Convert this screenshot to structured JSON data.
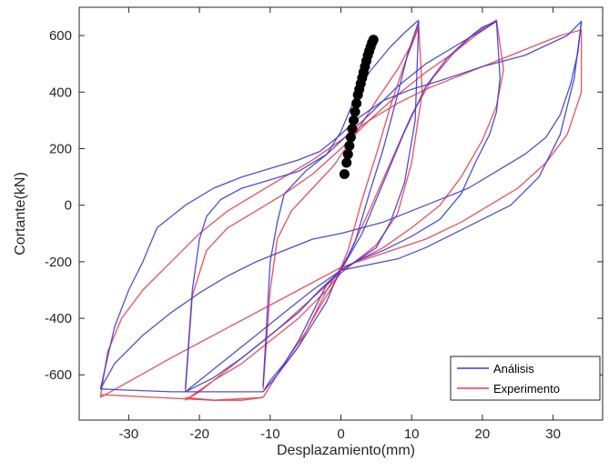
{
  "chart_data": {
    "type": "line",
    "xlabel": "Desplazamiento(mm)",
    "ylabel": "Cortante(kN)",
    "xlim": [
      -37,
      37
    ],
    "ylim": [
      -760,
      700
    ],
    "x_ticks": [
      -30,
      -20,
      -10,
      0,
      10,
      20,
      30
    ],
    "x_tick_labels": [
      "-30",
      "-20",
      "-10",
      "0",
      "10",
      "20",
      "30"
    ],
    "y_ticks": [
      -600,
      -400,
      -200,
      0,
      200,
      400,
      600
    ],
    "y_tick_labels": [
      "-600",
      "-400",
      "-200",
      "0",
      "200",
      "400",
      "600"
    ],
    "grid": false,
    "legend_position": "bottom-right",
    "colors": {
      "analisis": "#3a3ae0",
      "experimento": "#ee3a4a",
      "marker": "#000000",
      "axis": "#262626"
    },
    "series": [
      {
        "name": "Análisis",
        "color": "#3a3ae0",
        "loops": [
          [
            [
              -11,
              -660
            ],
            [
              -9,
              -600
            ],
            [
              -6,
              -500
            ],
            [
              -4,
              -420
            ],
            [
              -2,
              -340
            ],
            [
              -1,
              -280
            ],
            [
              0,
              -230
            ],
            [
              2,
              -130
            ],
            [
              4,
              40
            ],
            [
              6,
              200
            ],
            [
              8,
              390
            ],
            [
              9.5,
              540
            ],
            [
              11,
              650
            ],
            [
              10.5,
              300
            ],
            [
              9,
              80
            ],
            [
              7,
              -60
            ],
            [
              5,
              -150
            ],
            [
              2,
              -200
            ],
            [
              0,
              -230
            ],
            [
              -2,
              -280
            ],
            [
              -4,
              -380
            ],
            [
              -6,
              -480
            ],
            [
              -8,
              -560
            ],
            [
              -10,
              -620
            ],
            [
              -11,
              -660
            ]
          ],
          [
            [
              -11,
              -640
            ],
            [
              -10,
              -200
            ],
            [
              -9,
              -60
            ],
            [
              -8,
              40
            ],
            [
              -5,
              120
            ],
            [
              -2,
              180
            ],
            [
              0,
              260
            ],
            [
              2,
              380
            ],
            [
              4,
              470
            ],
            [
              7,
              560
            ],
            [
              9,
              610
            ],
            [
              11,
              655
            ]
          ],
          [
            [
              -22,
              -660
            ],
            [
              -20,
              -620
            ],
            [
              -16,
              -540
            ],
            [
              -12,
              -460
            ],
            [
              -8,
              -380
            ],
            [
              -4,
              -300
            ],
            [
              0,
              -230
            ],
            [
              3,
              -100
            ],
            [
              6,
              80
            ],
            [
              9,
              260
            ],
            [
              12,
              420
            ],
            [
              15,
              520
            ],
            [
              18,
              590
            ],
            [
              20,
              630
            ],
            [
              22,
              650
            ],
            [
              22.5,
              450
            ],
            [
              22,
              330
            ],
            [
              21,
              250
            ],
            [
              19,
              150
            ],
            [
              17,
              40
            ],
            [
              14,
              -50
            ],
            [
              10,
              -110
            ],
            [
              6,
              -160
            ],
            [
              2,
              -200
            ],
            [
              0,
              -230
            ],
            [
              -3,
              -300
            ],
            [
              -6,
              -380
            ],
            [
              -10,
              -460
            ],
            [
              -14,
              -540
            ],
            [
              -18,
              -610
            ],
            [
              -22,
              -660
            ]
          ],
          [
            [
              -22,
              -650
            ],
            [
              -21,
              -300
            ],
            [
              -20,
              -120
            ],
            [
              -19,
              -40
            ],
            [
              -17,
              20
            ],
            [
              -14,
              60
            ],
            [
              -10,
              90
            ],
            [
              -6,
              120
            ],
            [
              -2,
              180
            ],
            [
              1,
              250
            ],
            [
              4,
              320
            ],
            [
              8,
              420
            ],
            [
              12,
              500
            ],
            [
              16,
              560
            ],
            [
              20,
              620
            ],
            [
              22,
              650
            ]
          ],
          [
            [
              -34,
              -650
            ],
            [
              -32,
              -560
            ],
            [
              -28,
              -460
            ],
            [
              -24,
              -380
            ],
            [
              -20,
              -310
            ],
            [
              -16,
              -250
            ],
            [
              -12,
              -200
            ],
            [
              -8,
              -160
            ],
            [
              -4,
              -120
            ],
            [
              0,
              -100
            ],
            [
              6,
              -60
            ],
            [
              12,
              0
            ],
            [
              18,
              60
            ],
            [
              22,
              120
            ],
            [
              26,
              180
            ],
            [
              29,
              240
            ],
            [
              31,
              320
            ],
            [
              32.5,
              430
            ],
            [
              33.5,
              540
            ],
            [
              34,
              650
            ],
            [
              32,
              600
            ],
            [
              26,
              530
            ],
            [
              20,
              490
            ],
            [
              14,
              440
            ],
            [
              10,
              410
            ],
            [
              6,
              370
            ],
            [
              2,
              300
            ],
            [
              0,
              250
            ],
            [
              -3,
              190
            ],
            [
              -6,
              160
            ],
            [
              -10,
              130
            ],
            [
              -14,
              100
            ],
            [
              -18,
              60
            ],
            [
              -22,
              0
            ],
            [
              -26,
              -80
            ],
            [
              -28,
              -200
            ],
            [
              -30,
              -300
            ],
            [
              -32,
              -430
            ],
            [
              -34,
              -650
            ]
          ],
          [
            [
              -34,
              -650
            ],
            [
              -24,
              -660
            ],
            [
              -14,
              -660
            ],
            [
              -11,
              -660
            ]
          ],
          [
            [
              0,
              -230
            ],
            [
              4,
              -210
            ],
            [
              8,
              -190
            ],
            [
              12,
              -150
            ],
            [
              16,
              -100
            ],
            [
              20,
              -50
            ],
            [
              24,
              0
            ],
            [
              28,
              100
            ],
            [
              31,
              250
            ],
            [
              33,
              450
            ],
            [
              34,
              650
            ]
          ]
        ]
      },
      {
        "name": "Experimento",
        "color": "#ee3a4a",
        "loops": [
          [
            [
              -11,
              -680
            ],
            [
              -8,
              -560
            ],
            [
              -5,
              -450
            ],
            [
              -3,
              -360
            ],
            [
              -1,
              -280
            ],
            [
              1,
              -160
            ],
            [
              3,
              20
            ],
            [
              5,
              180
            ],
            [
              7,
              350
            ],
            [
              9,
              500
            ],
            [
              11,
              630
            ],
            [
              11.5,
              400
            ],
            [
              10,
              150
            ],
            [
              8,
              -30
            ],
            [
              5,
              -140
            ],
            [
              2,
              -200
            ],
            [
              0,
              -240
            ],
            [
              -2,
              -300
            ],
            [
              -4,
              -400
            ],
            [
              -6,
              -500
            ],
            [
              -9,
              -600
            ],
            [
              -11,
              -680
            ]
          ],
          [
            [
              -11,
              -650
            ],
            [
              -10,
              -300
            ],
            [
              -9,
              -120
            ],
            [
              -7,
              -20
            ],
            [
              -4,
              60
            ],
            [
              -1,
              140
            ],
            [
              2,
              250
            ],
            [
              5,
              370
            ],
            [
              8,
              480
            ],
            [
              10,
              570
            ],
            [
              11,
              640
            ]
          ],
          [
            [
              -22,
              -690
            ],
            [
              -18,
              -620
            ],
            [
              -14,
              -560
            ],
            [
              -10,
              -480
            ],
            [
              -6,
              -400
            ],
            [
              -2,
              -300
            ],
            [
              1,
              -180
            ],
            [
              4,
              -20
            ],
            [
              7,
              150
            ],
            [
              10,
              320
            ],
            [
              13,
              450
            ],
            [
              16,
              540
            ],
            [
              19,
              610
            ],
            [
              22,
              655
            ],
            [
              23,
              480
            ],
            [
              22,
              350
            ],
            [
              20,
              230
            ],
            [
              17,
              100
            ],
            [
              14,
              0
            ],
            [
              10,
              -80
            ],
            [
              6,
              -150
            ],
            [
              2,
              -200
            ],
            [
              -1,
              -260
            ],
            [
              -5,
              -350
            ],
            [
              -9,
              -440
            ],
            [
              -13,
              -520
            ],
            [
              -17,
              -600
            ],
            [
              -20,
              -660
            ],
            [
              -22,
              -690
            ]
          ],
          [
            [
              -22,
              -660
            ],
            [
              -21,
              -320
            ],
            [
              -19,
              -160
            ],
            [
              -16,
              -80
            ],
            [
              -12,
              -20
            ],
            [
              -8,
              40
            ],
            [
              -4,
              110
            ],
            [
              0,
              200
            ],
            [
              4,
              300
            ],
            [
              8,
              390
            ],
            [
              12,
              470
            ],
            [
              16,
              540
            ],
            [
              19,
              600
            ],
            [
              22,
              650
            ]
          ],
          [
            [
              -34,
              -680
            ],
            [
              -33,
              -520
            ],
            [
              -31,
              -400
            ],
            [
              -28,
              -300
            ],
            [
              -24,
              -200
            ],
            [
              -20,
              -100
            ],
            [
              -16,
              -20
            ],
            [
              -12,
              40
            ],
            [
              -8,
              100
            ],
            [
              -4,
              160
            ],
            [
              0,
              230
            ],
            [
              4,
              300
            ],
            [
              8,
              360
            ],
            [
              12,
              410
            ],
            [
              16,
              450
            ],
            [
              20,
              490
            ],
            [
              24,
              530
            ],
            [
              28,
              570
            ],
            [
              31,
              600
            ],
            [
              34,
              620
            ],
            [
              34,
              400
            ],
            [
              32,
              250
            ],
            [
              29,
              150
            ],
            [
              25,
              60
            ],
            [
              21,
              0
            ],
            [
              17,
              -60
            ],
            [
              12,
              -120
            ],
            [
              6,
              -170
            ],
            [
              0,
              -220
            ],
            [
              -6,
              -300
            ],
            [
              -12,
              -380
            ],
            [
              -18,
              -460
            ],
            [
              -24,
              -540
            ],
            [
              -29,
              -610
            ],
            [
              -34,
              -680
            ]
          ],
          [
            [
              -34,
              -670
            ],
            [
              -26,
              -680
            ],
            [
              -18,
              -690
            ],
            [
              -11,
              -680
            ]
          ],
          [
            [
              -22,
              -680
            ],
            [
              -18,
              -690
            ],
            [
              -14,
              -690
            ],
            [
              -11,
              -680
            ]
          ]
        ]
      }
    ],
    "marker_series": {
      "color": "#000000",
      "points": [
        [
          0.5,
          110
        ],
        [
          0.8,
          150
        ],
        [
          1.0,
          180
        ],
        [
          1.2,
          210
        ],
        [
          1.4,
          240
        ],
        [
          1.6,
          270
        ],
        [
          1.8,
          300
        ],
        [
          2.0,
          330
        ],
        [
          2.2,
          360
        ],
        [
          2.4,
          390
        ],
        [
          2.6,
          410
        ],
        [
          2.8,
          430
        ],
        [
          3.0,
          450
        ],
        [
          3.2,
          470
        ],
        [
          3.4,
          490
        ],
        [
          3.6,
          510
        ],
        [
          3.8,
          530
        ],
        [
          4.0,
          545
        ],
        [
          4.2,
          560
        ],
        [
          4.4,
          575
        ],
        [
          4.6,
          585
        ]
      ]
    }
  }
}
